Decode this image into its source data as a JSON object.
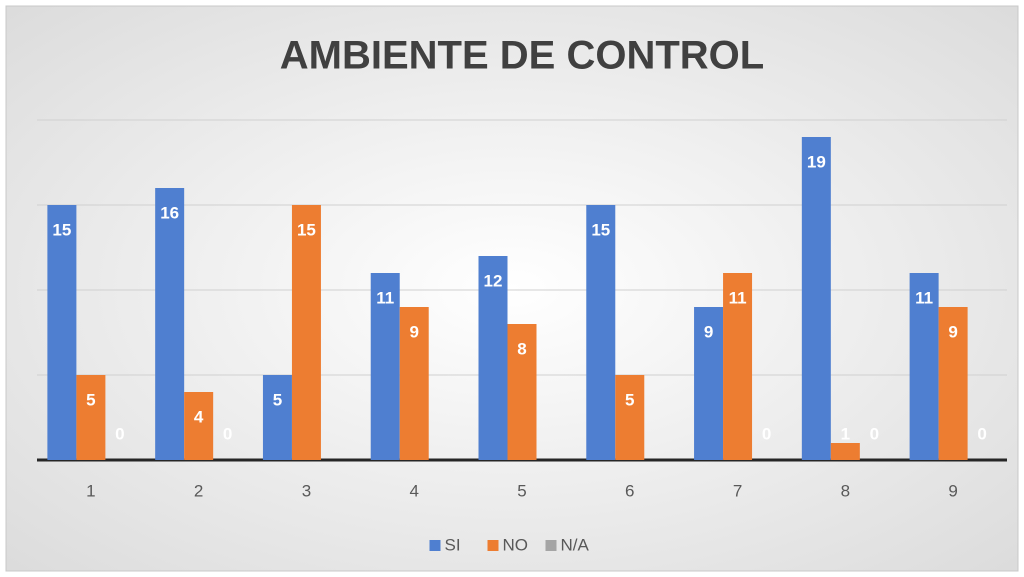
{
  "chart_data": {
    "type": "bar",
    "title": "AMBIENTE DE CONTROL",
    "categories": [
      "1",
      "2",
      "3",
      "4",
      "5",
      "6",
      "7",
      "8",
      "9"
    ],
    "series": [
      {
        "name": "SI",
        "color": "#4f7fd0",
        "values": [
          15,
          16,
          5,
          11,
          12,
          15,
          9,
          19,
          11
        ]
      },
      {
        "name": "NO",
        "color": "#ed7d31",
        "values": [
          5,
          4,
          15,
          9,
          8,
          5,
          11,
          1,
          9
        ]
      },
      {
        "name": "N/A",
        "color": "#a5a5a5",
        "values": [
          0,
          0,
          null,
          null,
          null,
          null,
          0,
          0,
          0
        ]
      }
    ],
    "ylim": [
      0,
      20
    ],
    "yticks": [
      0,
      5,
      10,
      15,
      20
    ],
    "ytick_labels": false,
    "grid": true,
    "legend": "bottom"
  }
}
